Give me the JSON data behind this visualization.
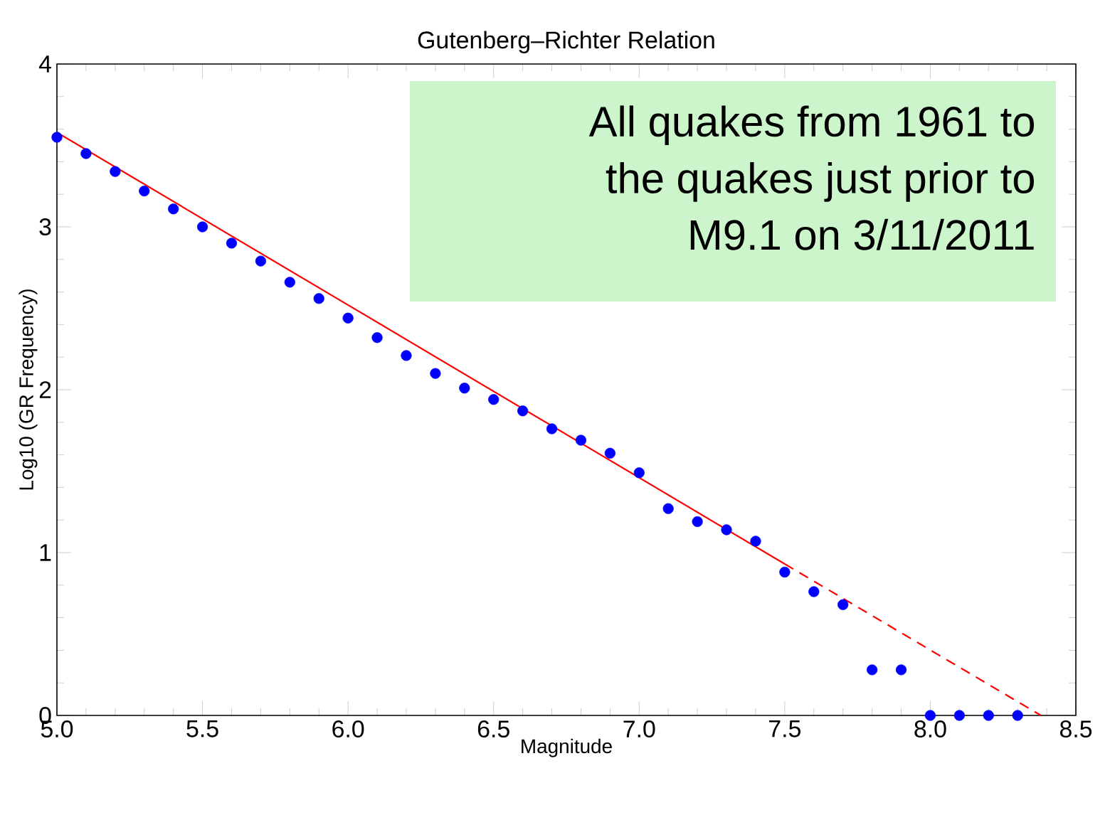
{
  "chart_data": {
    "type": "scatter",
    "title": "Gutenberg–Richter Relation",
    "xlabel": "Magnitude",
    "ylabel": "Log10 (GR Frequency)",
    "annotations": [
      "All quakes from 1961 to",
      "the quakes just prior to",
      "M9.1 on 3/11/2011"
    ],
    "xlim": [
      5,
      8.5
    ],
    "ylim": [
      0,
      4
    ],
    "xticks": [
      {
        "value": 5,
        "label": "5.0"
      },
      {
        "value": 5.5,
        "label": "5.5"
      },
      {
        "value": 6,
        "label": "6.0"
      },
      {
        "value": 6.5,
        "label": "6.5"
      },
      {
        "value": 7,
        "label": "7.0"
      },
      {
        "value": 7.5,
        "label": "7.5"
      },
      {
        "value": 8,
        "label": "8.0"
      },
      {
        "value": 8.5,
        "label": "8.5"
      }
    ],
    "yticks": [
      0,
      1,
      2,
      3,
      4
    ],
    "marker": "circle",
    "series": [
      {
        "type": "scatter",
        "color": "#0000ff",
        "x": [
          5.0,
          5.1,
          5.2,
          5.3,
          5.4,
          5.5,
          5.6,
          5.7,
          5.8,
          5.9,
          6.0,
          6.1,
          6.2,
          6.3,
          6.4,
          6.5,
          6.6,
          6.7,
          6.8,
          6.9,
          7.0,
          7.1,
          7.2,
          7.3,
          7.4,
          7.5,
          7.6,
          7.7,
          7.8,
          7.9,
          8.0,
          8.1,
          8.2,
          8.3
        ],
        "values": [
          3.55,
          3.45,
          3.34,
          3.22,
          3.11,
          3.0,
          2.9,
          2.79,
          2.66,
          2.56,
          2.44,
          2.32,
          2.21,
          2.1,
          2.01,
          1.94,
          1.87,
          1.76,
          1.69,
          1.61,
          1.49,
          1.27,
          1.19,
          1.14,
          1.07,
          0.88,
          0.76,
          0.68,
          0.28,
          0.28,
          0,
          0,
          0,
          0
        ]
      },
      {
        "type": "line",
        "color": "#ff0000",
        "line_style": "solid",
        "marker": "none",
        "x": [
          5.0,
          7.5
        ],
        "values": [
          3.58,
          0.93
        ]
      },
      {
        "type": "line",
        "color": "#ff0000",
        "line_style": "dashed",
        "marker": "none",
        "x": [
          7.5,
          8.38
        ],
        "values": [
          0.93,
          0
        ]
      }
    ]
  }
}
